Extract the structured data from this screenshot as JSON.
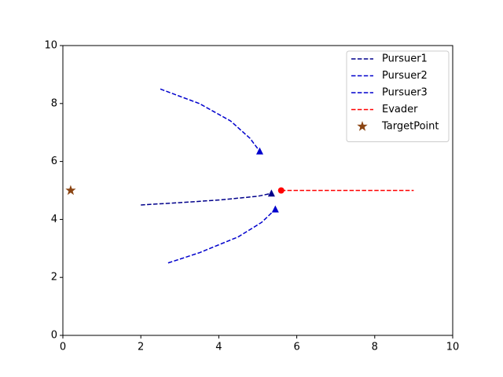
{
  "chart_data": {
    "type": "line",
    "xlim": [
      0,
      10
    ],
    "ylim": [
      0,
      10
    ],
    "xticks": [
      0,
      2,
      4,
      6,
      8,
      10
    ],
    "yticks": [
      0,
      2,
      4,
      6,
      8,
      10
    ],
    "legend": "upper right",
    "series": [
      {
        "name": "Pursuer1",
        "color": "#00008b",
        "linestyle": "dashed",
        "marker": "triangle",
        "marker_at": "end",
        "x": [
          2,
          3,
          4,
          5,
          5.35
        ],
        "values": [
          4.5,
          4.58,
          4.67,
          4.8,
          4.9
        ]
      },
      {
        "name": "Pursuer2",
        "color": "#0000cd",
        "linestyle": "dashed",
        "marker": "triangle",
        "marker_at": "end",
        "x": [
          2.5,
          3.5,
          4.3,
          4.8,
          5.05
        ],
        "values": [
          8.5,
          8.0,
          7.4,
          6.8,
          6.35
        ]
      },
      {
        "name": "Pursuer3",
        "color": "#0000cd",
        "linestyle": "dashed",
        "marker": "triangle",
        "marker_at": "end",
        "x": [
          2.7,
          3.5,
          4.5,
          5.1,
          5.45
        ],
        "values": [
          2.5,
          2.85,
          3.4,
          3.9,
          4.35
        ]
      },
      {
        "name": "Evader",
        "color": "#ff0000",
        "linestyle": "dashed",
        "marker": "circle",
        "marker_at": "start",
        "x": [
          5.6,
          9
        ],
        "values": [
          5,
          5
        ]
      },
      {
        "name": "TargetPoint",
        "color": "#8b4513",
        "linestyle": "none",
        "marker": "star",
        "marker_at": "all",
        "x": [
          0.2
        ],
        "values": [
          5
        ]
      }
    ]
  }
}
